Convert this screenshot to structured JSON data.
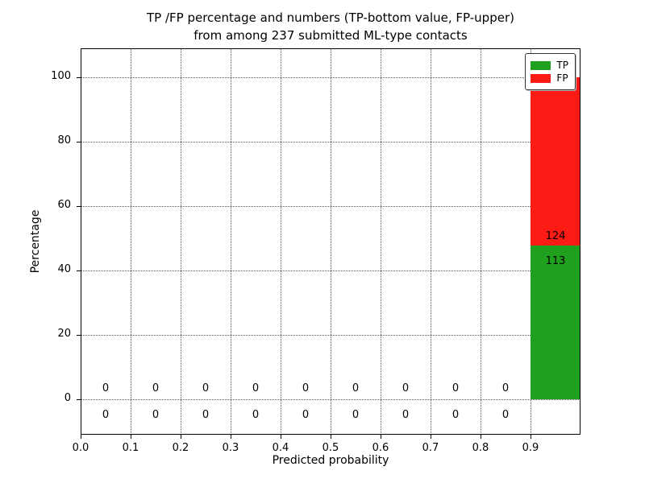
{
  "title": {
    "line1": "TP /FP percentage and numbers (TP-bottom value, FP-upper)",
    "line2": "from among 237 submitted ML-type contacts"
  },
  "chart_data": {
    "type": "bar",
    "stacked": true,
    "title": "TP /FP percentage and numbers (TP-bottom value, FP-upper)\nfrom among 237 submitted ML-type contacts",
    "xlabel": "Predicted probability",
    "ylabel": "Percentage",
    "total_submitted_contacts": 237,
    "xlim": [
      0.0,
      1.0
    ],
    "ylim": [
      -11,
      109
    ],
    "xticks": [
      0.0,
      0.1,
      0.2,
      0.3,
      0.4,
      0.5,
      0.6,
      0.7,
      0.8,
      0.9
    ],
    "yticks": [
      0,
      20,
      40,
      60,
      80,
      100
    ],
    "grid": true,
    "grid_style": "dotted",
    "legend_position": "upper right",
    "series": [
      {
        "name": "TP",
        "color": "#1fa01f"
      },
      {
        "name": "FP",
        "color": "#fc1b15"
      }
    ],
    "bins": [
      {
        "range": [
          0.0,
          0.1
        ],
        "tp_count": 0,
        "fp_count": 0,
        "tp_pct": 0,
        "fp_pct": 0
      },
      {
        "range": [
          0.1,
          0.2
        ],
        "tp_count": 0,
        "fp_count": 0,
        "tp_pct": 0,
        "fp_pct": 0
      },
      {
        "range": [
          0.2,
          0.3
        ],
        "tp_count": 0,
        "fp_count": 0,
        "tp_pct": 0,
        "fp_pct": 0
      },
      {
        "range": [
          0.3,
          0.4
        ],
        "tp_count": 0,
        "fp_count": 0,
        "tp_pct": 0,
        "fp_pct": 0
      },
      {
        "range": [
          0.4,
          0.5
        ],
        "tp_count": 0,
        "fp_count": 0,
        "tp_pct": 0,
        "fp_pct": 0
      },
      {
        "range": [
          0.5,
          0.6
        ],
        "tp_count": 0,
        "fp_count": 0,
        "tp_pct": 0,
        "fp_pct": 0
      },
      {
        "range": [
          0.6,
          0.7
        ],
        "tp_count": 0,
        "fp_count": 0,
        "tp_pct": 0,
        "fp_pct": 0
      },
      {
        "range": [
          0.7,
          0.8
        ],
        "tp_count": 0,
        "fp_count": 0,
        "tp_pct": 0,
        "fp_pct": 0
      },
      {
        "range": [
          0.8,
          0.9
        ],
        "tp_count": 0,
        "fp_count": 0,
        "tp_pct": 0,
        "fp_pct": 0
      },
      {
        "range": [
          0.9,
          1.0
        ],
        "tp_count": 113,
        "fp_count": 124,
        "tp_pct": 47.7,
        "fp_pct": 52.3
      }
    ]
  }
}
